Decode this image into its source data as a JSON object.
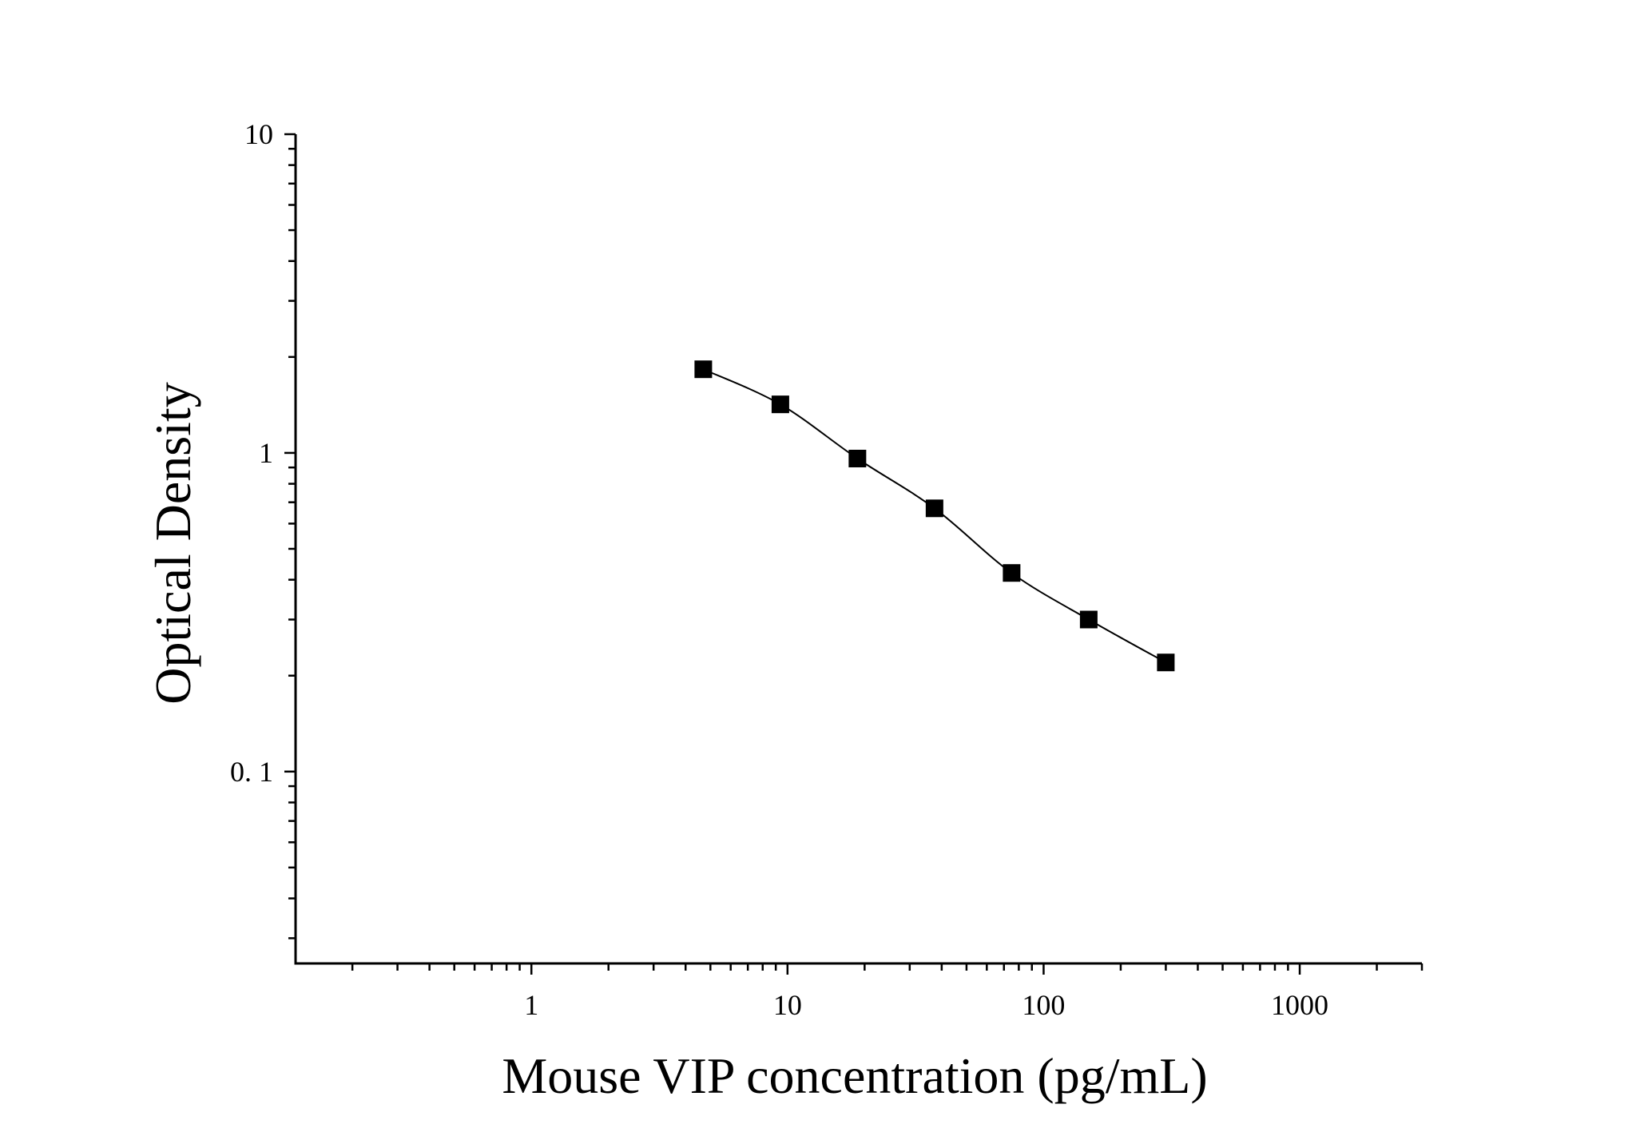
{
  "chart_data": {
    "type": "scatter",
    "title": "",
    "xlabel": "Mouse VIP concentration (pg/mL)",
    "ylabel": "Optical Density",
    "x_scale": "log",
    "y_scale": "log",
    "xlim": [
      0.12,
      3000
    ],
    "ylim": [
      0.025,
      10
    ],
    "x_ticks": [
      {
        "value": 1,
        "label": "1"
      },
      {
        "value": 10,
        "label": "10"
      },
      {
        "value": 100,
        "label": "100"
      },
      {
        "value": 1000,
        "label": "1000"
      }
    ],
    "y_ticks": [
      {
        "value": 0.1,
        "label": "0. 1"
      },
      {
        "value": 1,
        "label": "1"
      },
      {
        "value": 10,
        "label": "10"
      }
    ],
    "grid": false,
    "legend": "none",
    "series": [
      {
        "marker": "square",
        "color": "#000000",
        "x": [
          4.69,
          9.38,
          18.75,
          37.5,
          75,
          150,
          300
        ],
        "y": [
          1.83,
          1.42,
          0.96,
          0.67,
          0.42,
          0.3,
          0.22
        ],
        "fit_curve": true
      }
    ]
  }
}
